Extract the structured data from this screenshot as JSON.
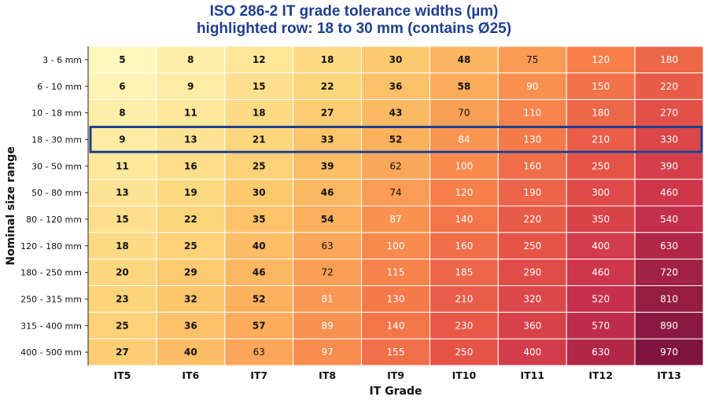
{
  "chart_data": {
    "type": "heatmap",
    "title": "ISO 286-2 IT grade tolerance widths (µm)",
    "subtitle": "highlighted row: 18 to 30 mm (contains Ø25)",
    "xlabel": "IT Grade",
    "ylabel": "Nominal size range",
    "columns": [
      "IT5",
      "IT6",
      "IT7",
      "IT8",
      "IT9",
      "IT10",
      "IT11",
      "IT12",
      "IT13"
    ],
    "rows": [
      "3 - 6 mm",
      "6 - 10 mm",
      "10 - 18 mm",
      "18 - 30 mm",
      "30 - 50 mm",
      "50 - 80 mm",
      "80 - 120 mm",
      "120 - 180 mm",
      "180 - 250 mm",
      "250 - 315 mm",
      "315 - 400 mm",
      "400 - 500 mm"
    ],
    "values": [
      [
        5,
        8,
        12,
        18,
        30,
        48,
        75,
        120,
        180
      ],
      [
        6,
        9,
        15,
        22,
        36,
        58,
        90,
        150,
        220
      ],
      [
        8,
        11,
        18,
        27,
        43,
        70,
        110,
        180,
        270
      ],
      [
        9,
        13,
        21,
        33,
        52,
        84,
        130,
        210,
        330
      ],
      [
        11,
        16,
        25,
        39,
        62,
        100,
        160,
        250,
        390
      ],
      [
        13,
        19,
        30,
        46,
        74,
        120,
        190,
        300,
        460
      ],
      [
        15,
        22,
        35,
        54,
        87,
        140,
        220,
        350,
        540
      ],
      [
        18,
        25,
        40,
        63,
        100,
        160,
        250,
        400,
        630
      ],
      [
        20,
        29,
        46,
        72,
        115,
        185,
        290,
        460,
        720
      ],
      [
        23,
        32,
        52,
        81,
        130,
        210,
        320,
        520,
        810
      ],
      [
        25,
        36,
        57,
        89,
        140,
        230,
        360,
        570,
        890
      ],
      [
        27,
        40,
        63,
        97,
        155,
        250,
        400,
        630,
        970
      ]
    ],
    "highlighted_row": "18 - 30 mm",
    "colormap": "YlOrRd",
    "highlight_color": "#1f3f8f",
    "grid": true,
    "legend": "none"
  }
}
